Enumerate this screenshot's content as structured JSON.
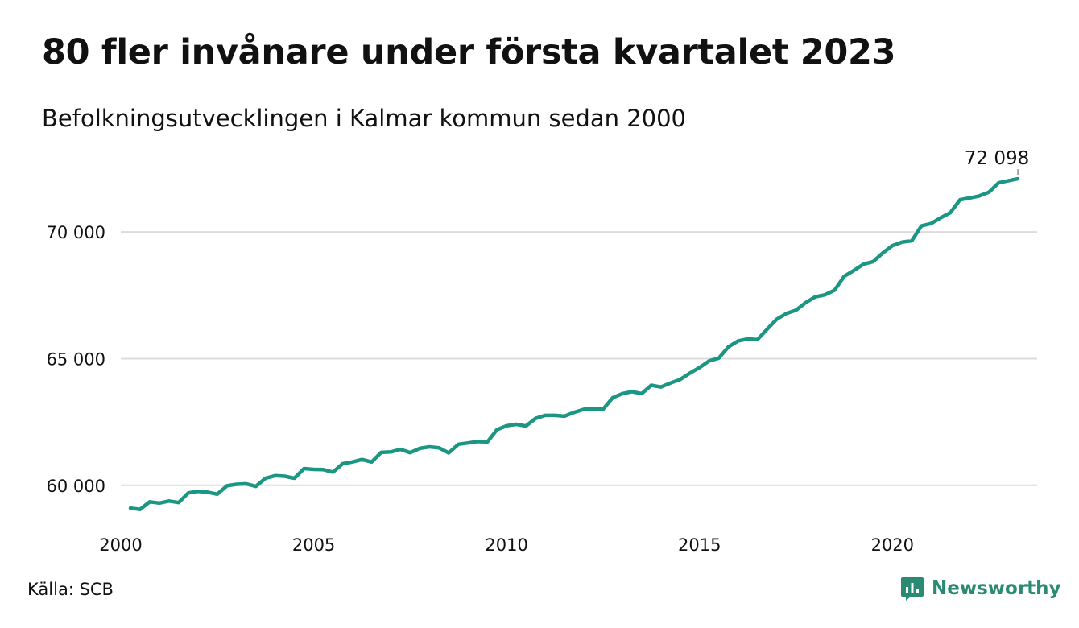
{
  "header": {
    "title": "80 fler invånare under första kvartalet 2023",
    "subtitle": "Befolkningsutvecklingen i Kalmar kommun sedan 2000"
  },
  "footer": {
    "source": "Källa: SCB",
    "brand": "Newsworthy",
    "brand_icon": "newsworthy-logo-icon",
    "brand_color": "#2b8a73"
  },
  "colors": {
    "line": "#1a9683",
    "grid": "#dcdcdc"
  },
  "chart_data": {
    "type": "line",
    "title": "80 fler invånare under första kvartalet 2023",
    "subtitle": "Befolkningsutvecklingen i Kalmar kommun sedan 2000",
    "xlabel": "",
    "ylabel": "",
    "xlim": [
      2000,
      2023.75
    ],
    "ylim": [
      58500,
      72800
    ],
    "x_ticks": [
      2000,
      2005,
      2010,
      2015,
      2020
    ],
    "x_tick_labels": [
      "2000",
      "2005",
      "2010",
      "2015",
      "2020"
    ],
    "y_ticks": [
      60000,
      65000,
      70000
    ],
    "y_tick_labels": [
      "60 000",
      "65 000",
      "70 000"
    ],
    "grid": "horizontal",
    "legend": "none",
    "end_label": "72 098",
    "series": [
      {
        "x": [
          2000.25,
          2000.5,
          2000.75,
          2001.0,
          2001.25,
          2001.5,
          2001.75,
          2002.0,
          2002.25,
          2002.5,
          2002.75,
          2003.0,
          2003.25,
          2003.5,
          2003.75,
          2004.0,
          2004.25,
          2004.5,
          2004.75,
          2005.0,
          2005.25,
          2005.5,
          2005.75,
          2006.0,
          2006.25,
          2006.5,
          2006.75,
          2007.0,
          2007.25,
          2007.5,
          2007.75,
          2008.0,
          2008.25,
          2008.5,
          2008.75,
          2009.0,
          2009.25,
          2009.5,
          2009.75,
          2010.0,
          2010.25,
          2010.5,
          2010.75,
          2011.0,
          2011.25,
          2011.5,
          2011.75,
          2012.0,
          2012.25,
          2012.5,
          2012.75,
          2013.0,
          2013.25,
          2013.5,
          2013.75,
          2014.0,
          2014.25,
          2014.5,
          2014.75,
          2015.0,
          2015.25,
          2015.5,
          2015.75,
          2016.0,
          2016.25,
          2016.5,
          2016.75,
          2017.0,
          2017.25,
          2017.5,
          2017.75,
          2018.0,
          2018.25,
          2018.5,
          2018.75,
          2019.0,
          2019.25,
          2019.5,
          2019.75,
          2020.0,
          2020.25,
          2020.5,
          2020.75,
          2021.0,
          2021.25,
          2021.5,
          2021.75,
          2022.0,
          2022.25,
          2022.5,
          2022.75,
          2023.0,
          2023.25
        ],
        "values": [
          59100,
          59050,
          59350,
          59300,
          59380,
          59320,
          59700,
          59760,
          59730,
          59650,
          59980,
          60040,
          60060,
          59960,
          60280,
          60380,
          60360,
          60280,
          60660,
          60630,
          60620,
          60520,
          60850,
          60920,
          61020,
          60920,
          61300,
          61320,
          61420,
          61290,
          61460,
          61520,
          61480,
          61280,
          61620,
          61670,
          61730,
          61710,
          62200,
          62350,
          62410,
          62340,
          62640,
          62760,
          62760,
          62730,
          62880,
          63000,
          63020,
          63000,
          63460,
          63620,
          63700,
          63620,
          63950,
          63880,
          64040,
          64180,
          64430,
          64650,
          64910,
          65020,
          65470,
          65700,
          65780,
          65750,
          66160,
          66560,
          66780,
          66910,
          67210,
          67440,
          67520,
          67700,
          68250,
          68480,
          68730,
          68830,
          69170,
          69460,
          69600,
          69650,
          70240,
          70330,
          70560,
          70760,
          71270,
          71340,
          71420,
          71570,
          71940,
          72018,
          72098
        ]
      }
    ]
  }
}
